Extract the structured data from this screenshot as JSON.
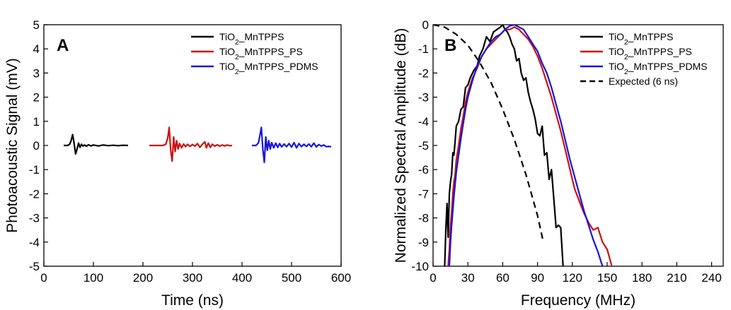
{
  "chart_data": [
    {
      "type": "line",
      "panel_label": "A",
      "xlabel": "Time (ns)",
      "ylabel": "Photoacoustic Signal (mV)",
      "xlim": [
        0,
        600
      ],
      "ylim": [
        -5,
        5
      ],
      "x_ticks": [
        0,
        100,
        200,
        300,
        400,
        500,
        600
      ],
      "y_ticks": [
        -5,
        -4,
        -3,
        -2,
        -1,
        0,
        1,
        2,
        3,
        4,
        5
      ],
      "legend_position": "top-right",
      "series": [
        {
          "name": "TiO2_MnTPPS",
          "color": "#000000",
          "x": [
            40,
            48,
            52,
            55,
            58,
            61,
            64,
            67,
            70,
            73,
            76,
            79,
            82,
            86,
            90,
            95,
            100,
            110,
            120,
            130,
            140,
            150,
            160,
            170
          ],
          "y": [
            0,
            0,
            0.05,
            0.2,
            0.45,
            0.1,
            -0.35,
            -0.15,
            0.1,
            -0.08,
            0.05,
            -0.03,
            0.02,
            -0.03,
            0.03,
            -0.02,
            0.02,
            -0.02,
            0.02,
            -0.01,
            0.01,
            -0.01,
            0.01,
            0
          ]
        },
        {
          "name": "TiO2_MnTPPS_PS",
          "color": "#cc1111",
          "x": [
            213,
            225,
            240,
            246,
            250,
            253,
            256,
            259,
            262,
            265,
            268,
            271,
            274,
            278,
            282,
            286,
            290,
            295,
            300,
            305,
            310,
            315,
            320,
            325,
            328,
            332,
            336,
            340,
            345,
            350,
            355,
            360,
            365,
            370,
            375,
            380
          ],
          "y": [
            0,
            0,
            0,
            0.05,
            0.3,
            0.75,
            -0.2,
            -0.65,
            0.35,
            -0.25,
            0.2,
            -0.15,
            0.08,
            -0.1,
            0.06,
            -0.05,
            0.05,
            -0.04,
            0.04,
            -0.03,
            0.08,
            -0.08,
            0.05,
            0.15,
            -0.1,
            0.1,
            -0.08,
            0.05,
            -0.03,
            0.03,
            -0.03,
            0.02,
            -0.02,
            0.02,
            -0.01,
            0
          ]
        },
        {
          "name": "TiO2_MnTPPS_PDMS",
          "color": "#1515dd",
          "x": [
            420,
            428,
            433,
            436,
            439,
            442,
            445,
            448,
            451,
            454,
            457,
            460,
            464,
            468,
            472,
            476,
            480,
            485,
            490,
            495,
            500,
            505,
            510,
            515,
            520,
            525,
            530,
            535,
            540,
            545,
            550,
            555,
            560,
            565,
            570,
            575,
            580
          ],
          "y": [
            0,
            0,
            0.1,
            0.4,
            0.75,
            -0.15,
            -0.7,
            0.35,
            -0.2,
            0.2,
            -0.15,
            0.12,
            -0.1,
            0.1,
            -0.08,
            0.08,
            -0.06,
            0.06,
            -0.05,
            0.08,
            -0.07,
            0.12,
            -0.1,
            0.08,
            -0.05,
            0.05,
            -0.04,
            0.06,
            -0.05,
            0.1,
            -0.06,
            0.04,
            -0.03,
            0.02,
            -0.05,
            -0.04,
            -0.05
          ]
        }
      ]
    },
    {
      "type": "line",
      "panel_label": "B",
      "xlabel": "Frequency (MHz)",
      "ylabel": "Normalized Spectral Amplitude (dB)",
      "xlim": [
        0,
        250
      ],
      "ylim": [
        -10,
        0
      ],
      "x_ticks": [
        0,
        30,
        60,
        90,
        120,
        150,
        180,
        210,
        240
      ],
      "y_ticks": [
        0,
        -1,
        -2,
        -3,
        -4,
        -5,
        -6,
        -7,
        -8,
        -9,
        -10
      ],
      "legend_position": "top-right",
      "series": [
        {
          "name": "TiO2_MnTPPS",
          "color": "#000000",
          "x": [
            10,
            11,
            12,
            13,
            14,
            15,
            16,
            17,
            18,
            19,
            20,
            22,
            24,
            26,
            28,
            30,
            32,
            35,
            38,
            40,
            43,
            46,
            49,
            52,
            55,
            58,
            60,
            62,
            64,
            66,
            68,
            70,
            72,
            74,
            76,
            78,
            80,
            82,
            84,
            86,
            88,
            90,
            92,
            94,
            96,
            98,
            100,
            102,
            104,
            106,
            108,
            110,
            112
          ],
          "y": [
            -10,
            -8.5,
            -7.4,
            -8.8,
            -7.0,
            -6.5,
            -6.2,
            -5.3,
            -5.4,
            -4.8,
            -4.2,
            -4.0,
            -3.5,
            -3.4,
            -2.6,
            -2.5,
            -2.2,
            -1.9,
            -1.7,
            -1.3,
            -1.0,
            -0.5,
            -0.7,
            -0.3,
            -0.2,
            -0.1,
            0,
            -0.2,
            -0.3,
            -0.5,
            -0.8,
            -1.0,
            -1.5,
            -1.4,
            -2.0,
            -2.3,
            -2.2,
            -2.8,
            -3.2,
            -3.5,
            -3.9,
            -4.5,
            -4.6,
            -4.2,
            -5.4,
            -5.3,
            -6.4,
            -6.0,
            -7.2,
            -8.4,
            -8.3,
            -8.4,
            -10
          ]
        },
        {
          "name": "TiO2_MnTPPS_PS",
          "color": "#cc1111",
          "x": [
            13,
            14,
            15,
            16,
            17,
            18,
            19,
            20,
            22,
            24,
            26,
            28,
            30,
            34,
            38,
            42,
            46,
            50,
            54,
            58,
            62,
            66,
            70,
            74,
            78,
            82,
            86,
            90,
            94,
            98,
            102,
            106,
            110,
            114,
            118,
            122,
            126,
            130,
            134,
            138,
            142,
            146,
            150,
            154
          ],
          "y": [
            -10,
            -9.3,
            -8.3,
            -7.8,
            -7.0,
            -6.5,
            -6.2,
            -5.6,
            -5.0,
            -4.3,
            -3.8,
            -3.2,
            -2.8,
            -2.2,
            -1.8,
            -1.3,
            -1.0,
            -0.8,
            -0.6,
            -0.4,
            -0.2,
            -0.2,
            -0.1,
            -0.2,
            -0.4,
            -0.6,
            -0.9,
            -1.3,
            -1.8,
            -2.4,
            -3.0,
            -3.7,
            -4.4,
            -5.2,
            -6.0,
            -6.8,
            -7.3,
            -7.8,
            -8.2,
            -8.5,
            -8.4,
            -9.0,
            -9.3,
            -10
          ]
        },
        {
          "name": "TiO2_MnTPPS_PDMS",
          "color": "#1515dd",
          "x": [
            14,
            15,
            16,
            17,
            18,
            19,
            20,
            22,
            24,
            26,
            28,
            30,
            34,
            38,
            42,
            46,
            50,
            54,
            58,
            62,
            66,
            70,
            74,
            78,
            82,
            86,
            90,
            94,
            98,
            102,
            106,
            110,
            114,
            118,
            122,
            126,
            130,
            134,
            138,
            142,
            146
          ],
          "y": [
            -10,
            -9.0,
            -8.3,
            -7.7,
            -7.1,
            -6.6,
            -6.1,
            -5.4,
            -4.7,
            -4.1,
            -3.5,
            -3.0,
            -2.3,
            -1.7,
            -1.3,
            -1.0,
            -0.7,
            -0.5,
            -0.4,
            -0.2,
            -0.05,
            0,
            -0.1,
            -0.2,
            -0.5,
            -0.8,
            -1.1,
            -1.6,
            -2.0,
            -2.6,
            -3.3,
            -4.0,
            -4.8,
            -5.6,
            -6.3,
            -7.0,
            -7.7,
            -8.3,
            -8.9,
            -9.4,
            -10
          ]
        },
        {
          "name": "Expected (6 ns)",
          "color": "#000000",
          "dash": true,
          "x": [
            0,
            10,
            20,
            30,
            40,
            50,
            60,
            70,
            80,
            90,
            95
          ],
          "y": [
            0,
            -0.1,
            -0.4,
            -0.85,
            -1.55,
            -2.4,
            -3.5,
            -4.75,
            -6.2,
            -7.9,
            -9.0
          ]
        }
      ]
    }
  ]
}
